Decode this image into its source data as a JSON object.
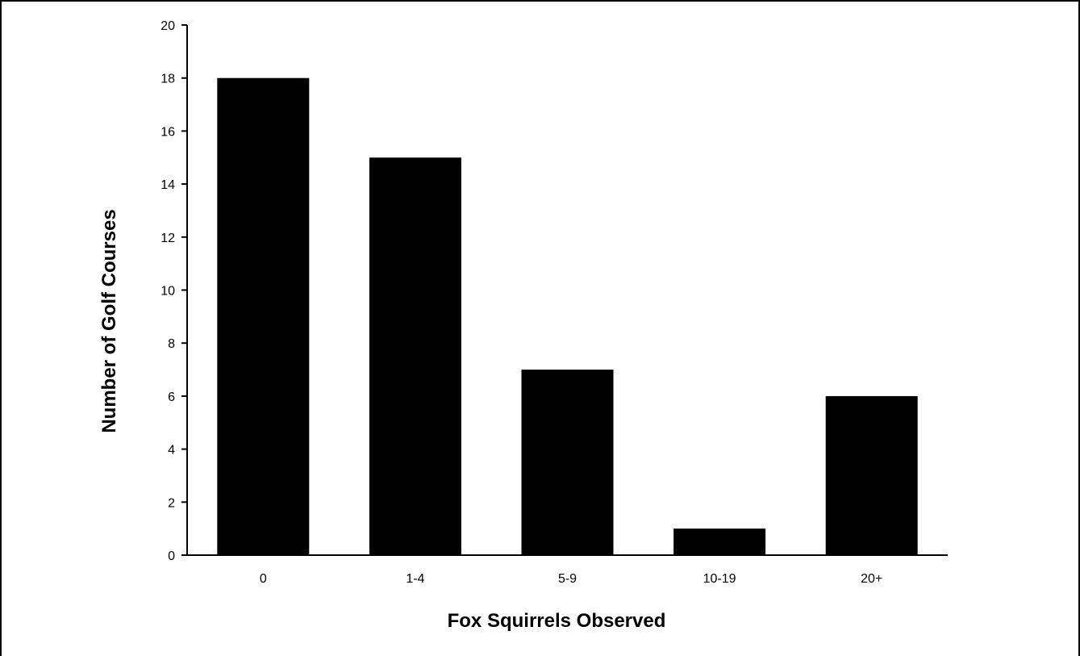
{
  "chart_data": {
    "type": "bar",
    "title": "",
    "xlabel": "Fox Squirrels Observed",
    "ylabel": "Number of Golf Courses",
    "categories": [
      "0",
      "1-4",
      "5-9",
      "10-19",
      "20+"
    ],
    "values": [
      18,
      15,
      7,
      1,
      6
    ],
    "ylim": [
      0,
      20
    ],
    "yticks": [
      0,
      2,
      4,
      6,
      8,
      10,
      12,
      14,
      16,
      18,
      20
    ],
    "grid": false,
    "legend": "none",
    "bar_color": "#000000",
    "axis_color": "#000000",
    "background": "#ffffff"
  }
}
